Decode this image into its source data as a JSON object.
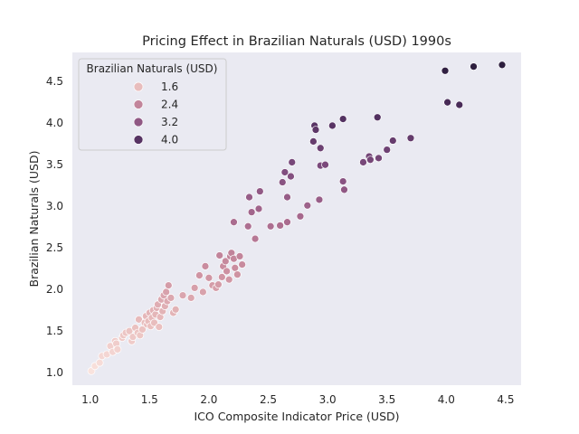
{
  "chart_data": {
    "type": "scatter",
    "title": "Pricing Effect in Brazilian Naturals (USD) 1990s",
    "xlabel": "ICO Composite Indicator Price (USD)",
    "ylabel": "Brazilian Naturals (USD)",
    "xlim": [
      0.85,
      4.63
    ],
    "ylim": [
      0.85,
      4.85
    ],
    "xticks": [
      1.0,
      1.5,
      2.0,
      2.5,
      3.0,
      3.5,
      4.0,
      4.5
    ],
    "xtick_labels": [
      "1.0",
      "1.5",
      "2.0",
      "2.5",
      "3.0",
      "3.5",
      "4.0",
      "4.5"
    ],
    "yticks": [
      1.0,
      1.5,
      2.0,
      2.5,
      3.0,
      3.5,
      4.0,
      4.5
    ],
    "ytick_labels": [
      "1.0",
      "1.5",
      "2.0",
      "2.5",
      "3.0",
      "3.5",
      "4.0",
      "4.5"
    ],
    "grid": false,
    "background": "#eaeaf2",
    "hue_range": [
      1.0,
      4.7
    ],
    "hue_colors": [
      "#fae4df",
      "#e8bcbc",
      "#cc8fa0",
      "#a86a8e",
      "#7d4b7d",
      "#512f5f",
      "#2d1e3e"
    ],
    "legend": {
      "title": "Brazilian Naturals (USD)",
      "placement": "top-left",
      "entries": [
        {
          "label": "1.6",
          "value": 1.6
        },
        {
          "label": "2.4",
          "value": 2.4
        },
        {
          "label": "3.2",
          "value": 3.2
        },
        {
          "label": "4.0",
          "value": 4.0
        }
      ]
    },
    "points": [
      [
        1.01,
        1.02
      ],
      [
        1.04,
        1.08
      ],
      [
        1.08,
        1.12
      ],
      [
        1.1,
        1.2
      ],
      [
        1.14,
        1.22
      ],
      [
        1.17,
        1.32
      ],
      [
        1.19,
        1.25
      ],
      [
        1.21,
        1.38
      ],
      [
        1.22,
        1.35
      ],
      [
        1.23,
        1.28
      ],
      [
        1.27,
        1.42
      ],
      [
        1.28,
        1.45
      ],
      [
        1.3,
        1.48
      ],
      [
        1.33,
        1.5
      ],
      [
        1.35,
        1.38
      ],
      [
        1.36,
        1.43
      ],
      [
        1.38,
        1.54
      ],
      [
        1.4,
        1.48
      ],
      [
        1.41,
        1.64
      ],
      [
        1.42,
        1.45
      ],
      [
        1.44,
        1.52
      ],
      [
        1.46,
        1.6
      ],
      [
        1.47,
        1.68
      ],
      [
        1.48,
        1.58
      ],
      [
        1.49,
        1.62
      ],
      [
        1.5,
        1.72
      ],
      [
        1.51,
        1.56
      ],
      [
        1.52,
        1.66
      ],
      [
        1.53,
        1.75
      ],
      [
        1.54,
        1.6
      ],
      [
        1.55,
        1.7
      ],
      [
        1.56,
        1.78
      ],
      [
        1.57,
        1.82
      ],
      [
        1.58,
        1.55
      ],
      [
        1.59,
        1.67
      ],
      [
        1.6,
        1.88
      ],
      [
        1.61,
        1.74
      ],
      [
        1.62,
        1.93
      ],
      [
        1.63,
        1.8
      ],
      [
        1.64,
        1.97
      ],
      [
        1.65,
        1.86
      ],
      [
        1.66,
        2.05
      ],
      [
        1.68,
        1.9
      ],
      [
        1.7,
        1.72
      ],
      [
        1.72,
        1.76
      ],
      [
        1.78,
        1.93
      ],
      [
        1.85,
        1.9
      ],
      [
        1.88,
        2.02
      ],
      [
        1.92,
        2.17
      ],
      [
        1.95,
        1.97
      ],
      [
        1.97,
        2.28
      ],
      [
        2.0,
        2.14
      ],
      [
        2.03,
        2.05
      ],
      [
        2.06,
        2.02
      ],
      [
        2.08,
        2.06
      ],
      [
        2.09,
        2.41
      ],
      [
        2.11,
        2.15
      ],
      [
        2.12,
        2.28
      ],
      [
        2.14,
        2.34
      ],
      [
        2.15,
        2.22
      ],
      [
        2.17,
        2.12
      ],
      [
        2.18,
        2.4
      ],
      [
        2.19,
        2.44
      ],
      [
        2.21,
        2.37
      ],
      [
        2.22,
        2.26
      ],
      [
        2.24,
        2.18
      ],
      [
        2.26,
        2.4
      ],
      [
        2.28,
        2.3
      ],
      [
        2.21,
        2.81
      ],
      [
        2.33,
        2.76
      ],
      [
        2.34,
        3.11
      ],
      [
        2.36,
        2.93
      ],
      [
        2.39,
        2.61
      ],
      [
        2.42,
        2.97
      ],
      [
        2.43,
        3.18
      ],
      [
        2.52,
        2.76
      ],
      [
        2.6,
        2.77
      ],
      [
        2.62,
        3.29
      ],
      [
        2.64,
        3.41
      ],
      [
        2.66,
        3.11
      ],
      [
        2.66,
        2.81
      ],
      [
        2.69,
        3.36
      ],
      [
        2.7,
        3.53
      ],
      [
        2.77,
        2.88
      ],
      [
        2.83,
        3.01
      ],
      [
        2.88,
        3.78
      ],
      [
        2.89,
        3.97
      ],
      [
        2.9,
        3.92
      ],
      [
        2.93,
        3.08
      ],
      [
        2.94,
        3.49
      ],
      [
        2.94,
        3.7
      ],
      [
        2.98,
        3.5
      ],
      [
        3.04,
        3.97
      ],
      [
        3.13,
        4.05
      ],
      [
        3.13,
        3.3
      ],
      [
        3.14,
        3.2
      ],
      [
        3.3,
        3.53
      ],
      [
        3.35,
        3.6
      ],
      [
        3.36,
        3.56
      ],
      [
        3.42,
        4.07
      ],
      [
        3.43,
        3.58
      ],
      [
        3.5,
        3.68
      ],
      [
        3.55,
        3.79
      ],
      [
        3.7,
        3.82
      ],
      [
        3.99,
        4.63
      ],
      [
        4.01,
        4.25
      ],
      [
        4.11,
        4.22
      ],
      [
        4.23,
        4.68
      ],
      [
        4.47,
        4.7
      ]
    ]
  }
}
